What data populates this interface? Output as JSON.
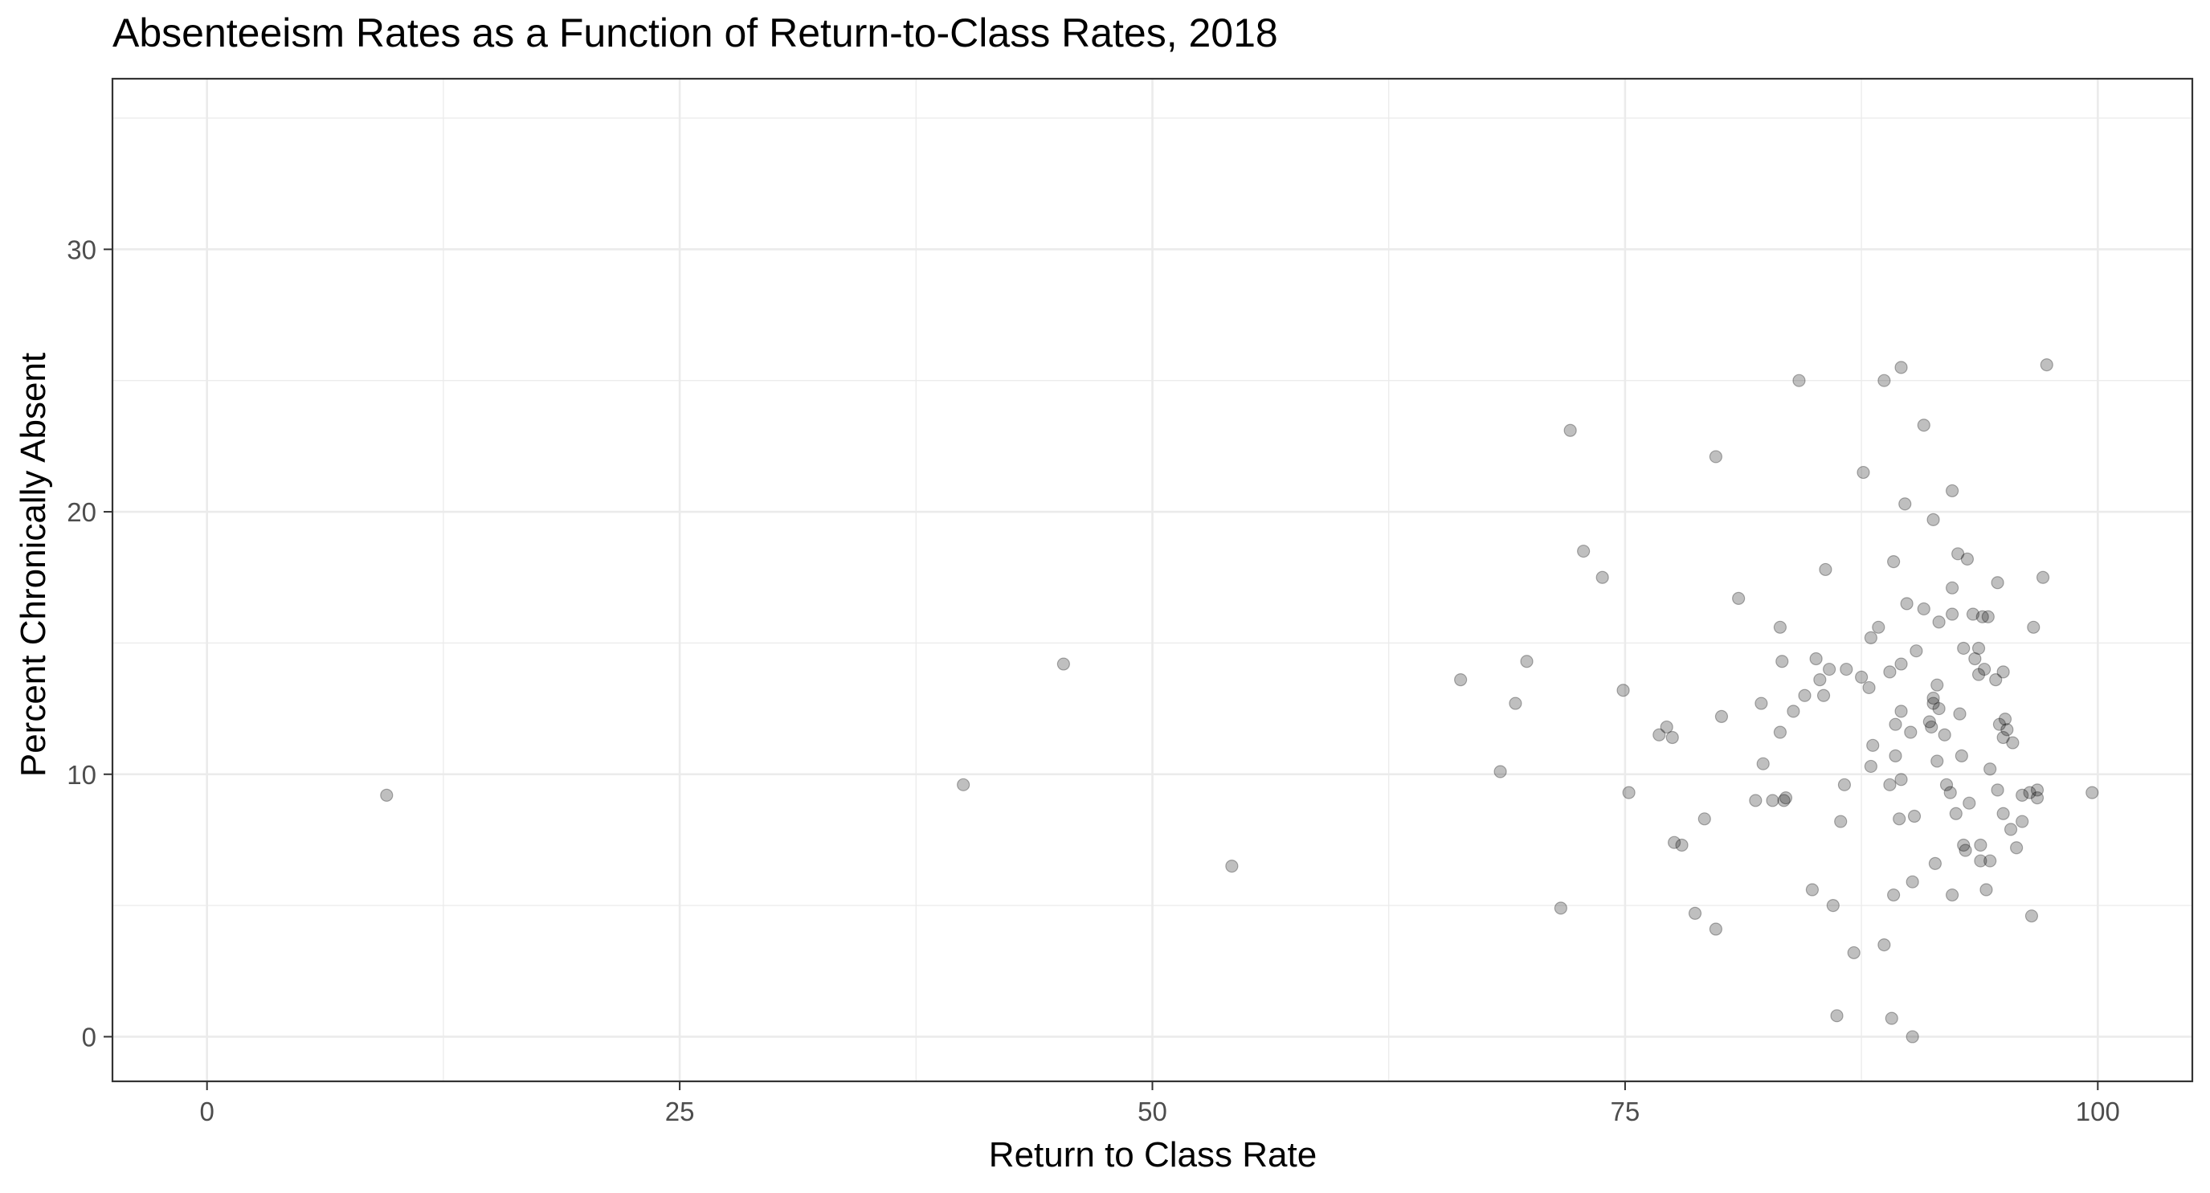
{
  "chart_data": {
    "type": "scatter",
    "title": "Absenteeism Rates as a Function of Return-to-Class Rates, 2018",
    "xlabel": "Return to Class Rate",
    "ylabel": "Percent Chronically Absent",
    "xlim": [
      -5,
      105
    ],
    "ylim": [
      -1.7,
      36.5
    ],
    "x_ticks": [
      0,
      25,
      50,
      75,
      100
    ],
    "y_ticks": [
      0,
      10,
      20,
      30
    ],
    "x_minor": [
      12.5,
      37.5,
      62.5,
      87.5
    ],
    "y_minor": [
      5,
      15,
      25,
      35
    ],
    "grid": true,
    "theme": "bw",
    "point_color": "#000000",
    "point_alpha": 0.25,
    "points": [
      [
        9.5,
        9.2
      ],
      [
        40,
        9.6
      ],
      [
        45.3,
        14.2
      ],
      [
        54.2,
        6.5
      ],
      [
        66.3,
        13.6
      ],
      [
        68.4,
        10.1
      ],
      [
        69.2,
        12.7
      ],
      [
        69.8,
        14.3
      ],
      [
        71.6,
        4.9
      ],
      [
        72.1,
        23.1
      ],
      [
        72.8,
        18.5
      ],
      [
        73.8,
        17.5
      ],
      [
        74.9,
        13.2
      ],
      [
        75.2,
        9.3
      ],
      [
        76.8,
        11.5
      ],
      [
        77.2,
        11.8
      ],
      [
        77.5,
        11.4
      ],
      [
        77.6,
        7.4
      ],
      [
        78.0,
        7.3
      ],
      [
        78.7,
        4.7
      ],
      [
        79.2,
        8.3
      ],
      [
        79.8,
        22.1
      ],
      [
        79.8,
        4.1
      ],
      [
        80.1,
        12.2
      ],
      [
        81.0,
        16.7
      ],
      [
        81.9,
        9.0
      ],
      [
        82.2,
        12.7
      ],
      [
        82.3,
        10.4
      ],
      [
        82.8,
        9.0
      ],
      [
        83.2,
        15.6
      ],
      [
        83.2,
        11.6
      ],
      [
        83.3,
        14.3
      ],
      [
        83.4,
        9.0
      ],
      [
        83.5,
        9.1
      ],
      [
        83.9,
        12.4
      ],
      [
        84.2,
        25.0
      ],
      [
        84.5,
        13.0
      ],
      [
        84.9,
        5.6
      ],
      [
        85.1,
        14.4
      ],
      [
        85.3,
        13.6
      ],
      [
        85.5,
        13.0
      ],
      [
        85.6,
        17.8
      ],
      [
        85.8,
        14.0
      ],
      [
        86.0,
        5.0
      ],
      [
        86.2,
        0.8
      ],
      [
        86.4,
        8.2
      ],
      [
        86.6,
        9.6
      ],
      [
        86.7,
        14.0
      ],
      [
        87.1,
        3.2
      ],
      [
        87.5,
        13.7
      ],
      [
        87.6,
        21.5
      ],
      [
        87.9,
        13.3
      ],
      [
        88.0,
        15.2
      ],
      [
        88.0,
        10.3
      ],
      [
        88.1,
        11.1
      ],
      [
        88.4,
        15.6
      ],
      [
        88.7,
        25.0
      ],
      [
        88.7,
        3.5
      ],
      [
        89.0,
        9.6
      ],
      [
        89.0,
        13.9
      ],
      [
        89.1,
        0.7
      ],
      [
        89.2,
        18.1
      ],
      [
        89.2,
        5.4
      ],
      [
        89.3,
        10.7
      ],
      [
        89.3,
        11.9
      ],
      [
        89.5,
        8.3
      ],
      [
        89.6,
        25.5
      ],
      [
        89.6,
        14.2
      ],
      [
        89.6,
        12.4
      ],
      [
        89.6,
        9.8
      ],
      [
        89.8,
        20.3
      ],
      [
        89.9,
        16.5
      ],
      [
        90.1,
        11.6
      ],
      [
        90.2,
        5.9
      ],
      [
        90.2,
        0.0
      ],
      [
        90.3,
        8.4
      ],
      [
        90.4,
        14.7
      ],
      [
        90.8,
        16.3
      ],
      [
        90.8,
        23.3
      ],
      [
        91.1,
        12.0
      ],
      [
        91.2,
        11.8
      ],
      [
        91.3,
        19.7
      ],
      [
        91.3,
        12.7
      ],
      [
        91.3,
        12.9
      ],
      [
        91.4,
        6.6
      ],
      [
        91.5,
        10.5
      ],
      [
        91.5,
        13.4
      ],
      [
        91.6,
        12.5
      ],
      [
        91.6,
        15.8
      ],
      [
        91.9,
        11.5
      ],
      [
        92.0,
        9.6
      ],
      [
        92.2,
        9.3
      ],
      [
        92.3,
        20.8
      ],
      [
        92.3,
        17.1
      ],
      [
        92.3,
        16.1
      ],
      [
        92.3,
        5.4
      ],
      [
        92.5,
        8.5
      ],
      [
        92.6,
        18.4
      ],
      [
        92.7,
        12.3
      ],
      [
        92.8,
        10.7
      ],
      [
        92.9,
        14.8
      ],
      [
        92.9,
        7.3
      ],
      [
        93.0,
        7.1
      ],
      [
        93.1,
        18.2
      ],
      [
        93.2,
        8.9
      ],
      [
        93.4,
        16.1
      ],
      [
        93.5,
        14.4
      ],
      [
        93.7,
        14.8
      ],
      [
        93.7,
        13.8
      ],
      [
        93.8,
        6.7
      ],
      [
        93.8,
        7.3
      ],
      [
        93.9,
        16.0
      ],
      [
        94.0,
        14.0
      ],
      [
        94.1,
        5.6
      ],
      [
        94.2,
        16.0
      ],
      [
        94.3,
        10.2
      ],
      [
        94.3,
        6.7
      ],
      [
        94.6,
        13.6
      ],
      [
        94.7,
        17.3
      ],
      [
        94.7,
        9.4
      ],
      [
        94.8,
        11.9
      ],
      [
        95.0,
        11.4
      ],
      [
        95.0,
        13.9
      ],
      [
        95.0,
        8.5
      ],
      [
        95.1,
        12.1
      ],
      [
        95.2,
        11.7
      ],
      [
        95.4,
        7.9
      ],
      [
        95.5,
        11.2
      ],
      [
        95.7,
        7.2
      ],
      [
        96.0,
        8.2
      ],
      [
        96.0,
        9.2
      ],
      [
        96.4,
        9.3
      ],
      [
        96.5,
        4.6
      ],
      [
        96.6,
        15.6
      ],
      [
        96.8,
        9.4
      ],
      [
        96.8,
        9.1
      ],
      [
        97.1,
        17.5
      ],
      [
        97.3,
        25.6
      ],
      [
        99.7,
        9.3
      ]
    ]
  }
}
